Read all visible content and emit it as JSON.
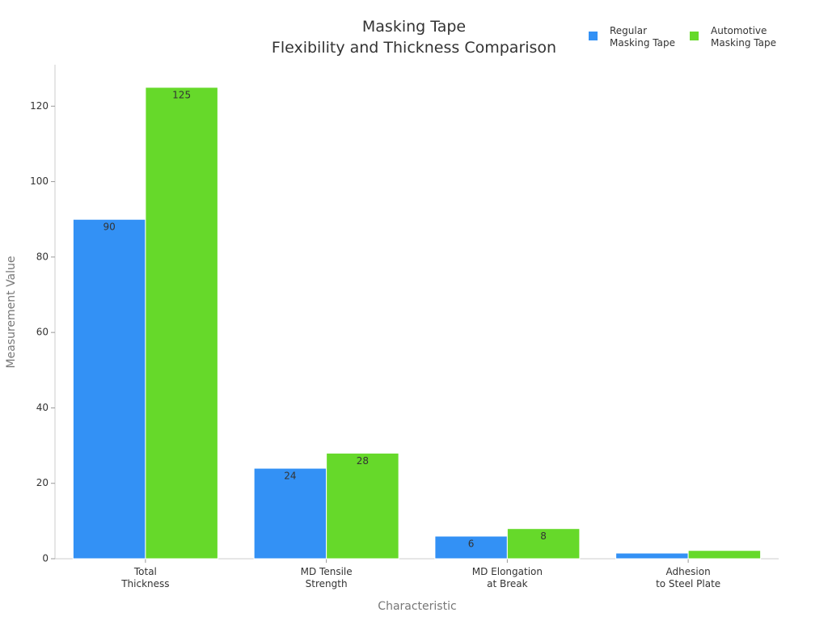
{
  "chart_data": {
    "type": "bar",
    "title": "Masking Tape\nFlexibility and Thickness Comparison",
    "x_label": "Characteristic",
    "y_label": "Measurement Value",
    "categories": [
      "Total\nThickness",
      "MD Tensile\nStrength",
      "MD Elongation\nat Break",
      "Adhesion\nto Steel Plate"
    ],
    "series": [
      {
        "name": "Regular\nMasking Tape",
        "color": "#3391f5",
        "values": [
          90,
          24,
          6,
          1.5
        ]
      },
      {
        "name": "Automotive\nMasking Tape",
        "color": "#66d92a",
        "values": [
          125,
          28,
          8,
          2.2
        ]
      }
    ],
    "ylim": [
      0,
      131
    ],
    "yticks": [
      0,
      20,
      40,
      60,
      80,
      100,
      120
    ],
    "legend": "top-right",
    "grid": false
  }
}
